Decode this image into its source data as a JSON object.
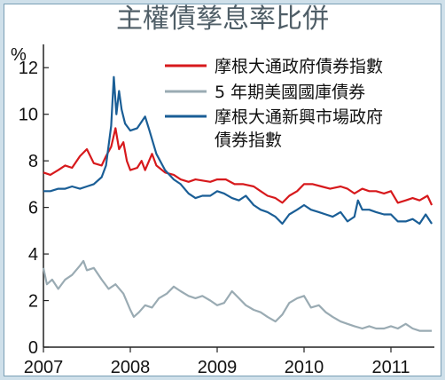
{
  "chart_data": {
    "type": "line",
    "title": "主權債孳息率比併",
    "ylabel": "%",
    "xlim": [
      2007.0,
      2011.5
    ],
    "ylim": [
      0,
      13
    ],
    "x_ticks": [
      2007,
      2008,
      2009,
      2010,
      2011
    ],
    "y_ticks": [
      0,
      2,
      4,
      6,
      8,
      10,
      12
    ],
    "grid": false,
    "legend_position": "top-right",
    "series": [
      {
        "name": "摩根大通政府債券指數",
        "color": "#d7191c",
        "points": [
          [
            2007.0,
            7.5
          ],
          [
            2007.08,
            7.4
          ],
          [
            2007.17,
            7.6
          ],
          [
            2007.25,
            7.8
          ],
          [
            2007.33,
            7.7
          ],
          [
            2007.42,
            8.2
          ],
          [
            2007.5,
            8.5
          ],
          [
            2007.58,
            7.9
          ],
          [
            2007.67,
            7.8
          ],
          [
            2007.72,
            8.2
          ],
          [
            2007.78,
            8.6
          ],
          [
            2007.83,
            9.4
          ],
          [
            2007.87,
            8.5
          ],
          [
            2007.92,
            8.8
          ],
          [
            2007.96,
            8.0
          ],
          [
            2008.0,
            7.6
          ],
          [
            2008.08,
            7.7
          ],
          [
            2008.13,
            8.0
          ],
          [
            2008.17,
            7.6
          ],
          [
            2008.25,
            8.3
          ],
          [
            2008.3,
            7.8
          ],
          [
            2008.4,
            7.5
          ],
          [
            2008.5,
            7.4
          ],
          [
            2008.58,
            7.2
          ],
          [
            2008.67,
            7.1
          ],
          [
            2008.75,
            7.2
          ],
          [
            2008.92,
            7.1
          ],
          [
            2009.0,
            7.2
          ],
          [
            2009.1,
            7.2
          ],
          [
            2009.2,
            7.0
          ],
          [
            2009.3,
            7.0
          ],
          [
            2009.42,
            6.9
          ],
          [
            2009.5,
            6.7
          ],
          [
            2009.58,
            6.5
          ],
          [
            2009.67,
            6.4
          ],
          [
            2009.75,
            6.2
          ],
          [
            2009.83,
            6.5
          ],
          [
            2009.92,
            6.7
          ],
          [
            2010.0,
            7.0
          ],
          [
            2010.1,
            7.0
          ],
          [
            2010.2,
            6.9
          ],
          [
            2010.3,
            6.8
          ],
          [
            2010.42,
            6.9
          ],
          [
            2010.5,
            6.8
          ],
          [
            2010.58,
            6.6
          ],
          [
            2010.67,
            6.8
          ],
          [
            2010.75,
            6.7
          ],
          [
            2010.83,
            6.7
          ],
          [
            2010.92,
            6.6
          ],
          [
            2011.0,
            6.7
          ],
          [
            2011.08,
            6.2
          ],
          [
            2011.17,
            6.3
          ],
          [
            2011.25,
            6.4
          ],
          [
            2011.33,
            6.3
          ],
          [
            2011.42,
            6.5
          ],
          [
            2011.47,
            6.1
          ]
        ]
      },
      {
        "name": "5 年期美國國庫債券",
        "color": "#9aabb3",
        "points": [
          [
            2007.0,
            3.4
          ],
          [
            2007.04,
            2.7
          ],
          [
            2007.1,
            2.9
          ],
          [
            2007.17,
            2.5
          ],
          [
            2007.25,
            2.9
          ],
          [
            2007.33,
            3.1
          ],
          [
            2007.42,
            3.5
          ],
          [
            2007.46,
            3.7
          ],
          [
            2007.5,
            3.3
          ],
          [
            2007.58,
            3.4
          ],
          [
            2007.67,
            2.9
          ],
          [
            2007.75,
            2.5
          ],
          [
            2007.83,
            2.7
          ],
          [
            2007.92,
            2.3
          ],
          [
            2008.0,
            1.6
          ],
          [
            2008.04,
            1.3
          ],
          [
            2008.1,
            1.5
          ],
          [
            2008.17,
            1.8
          ],
          [
            2008.25,
            1.7
          ],
          [
            2008.33,
            2.1
          ],
          [
            2008.42,
            2.3
          ],
          [
            2008.5,
            2.6
          ],
          [
            2008.58,
            2.4
          ],
          [
            2008.67,
            2.2
          ],
          [
            2008.75,
            2.1
          ],
          [
            2008.83,
            2.2
          ],
          [
            2008.92,
            2.0
          ],
          [
            2009.0,
            1.8
          ],
          [
            2009.08,
            1.9
          ],
          [
            2009.17,
            2.4
          ],
          [
            2009.25,
            2.1
          ],
          [
            2009.33,
            1.8
          ],
          [
            2009.42,
            1.6
          ],
          [
            2009.5,
            1.5
          ],
          [
            2009.58,
            1.3
          ],
          [
            2009.67,
            1.1
          ],
          [
            2009.75,
            1.4
          ],
          [
            2009.83,
            1.9
          ],
          [
            2009.92,
            2.1
          ],
          [
            2010.0,
            2.2
          ],
          [
            2010.08,
            1.7
          ],
          [
            2010.17,
            1.8
          ],
          [
            2010.25,
            1.5
          ],
          [
            2010.33,
            1.3
          ],
          [
            2010.42,
            1.1
          ],
          [
            2010.5,
            1.0
          ],
          [
            2010.58,
            0.9
          ],
          [
            2010.67,
            0.8
          ],
          [
            2010.75,
            0.9
          ],
          [
            2010.83,
            0.8
          ],
          [
            2010.92,
            0.8
          ],
          [
            2011.0,
            0.9
          ],
          [
            2011.08,
            0.8
          ],
          [
            2011.17,
            1.0
          ],
          [
            2011.25,
            0.8
          ],
          [
            2011.33,
            0.7
          ],
          [
            2011.42,
            0.7
          ],
          [
            2011.47,
            0.7
          ]
        ]
      },
      {
        "name": "摩根大通新興市場政府債券指數",
        "color": "#1a5e96",
        "points": [
          [
            2007.0,
            6.7
          ],
          [
            2007.08,
            6.7
          ],
          [
            2007.17,
            6.8
          ],
          [
            2007.25,
            6.8
          ],
          [
            2007.33,
            6.9
          ],
          [
            2007.42,
            6.8
          ],
          [
            2007.5,
            6.9
          ],
          [
            2007.58,
            7.0
          ],
          [
            2007.67,
            7.3
          ],
          [
            2007.72,
            7.8
          ],
          [
            2007.78,
            9.5
          ],
          [
            2007.81,
            11.6
          ],
          [
            2007.84,
            10.0
          ],
          [
            2007.87,
            11.0
          ],
          [
            2007.9,
            10.2
          ],
          [
            2007.94,
            9.6
          ],
          [
            2008.0,
            9.3
          ],
          [
            2008.08,
            9.4
          ],
          [
            2008.17,
            9.9
          ],
          [
            2008.22,
            9.3
          ],
          [
            2008.3,
            8.3
          ],
          [
            2008.4,
            7.6
          ],
          [
            2008.5,
            7.2
          ],
          [
            2008.58,
            7.0
          ],
          [
            2008.67,
            6.6
          ],
          [
            2008.75,
            6.4
          ],
          [
            2008.83,
            6.5
          ],
          [
            2008.92,
            6.5
          ],
          [
            2009.0,
            6.7
          ],
          [
            2009.08,
            6.6
          ],
          [
            2009.17,
            6.4
          ],
          [
            2009.25,
            6.3
          ],
          [
            2009.33,
            6.5
          ],
          [
            2009.42,
            6.1
          ],
          [
            2009.5,
            5.9
          ],
          [
            2009.58,
            5.8
          ],
          [
            2009.67,
            5.6
          ],
          [
            2009.75,
            5.3
          ],
          [
            2009.83,
            5.7
          ],
          [
            2009.92,
            5.9
          ],
          [
            2010.0,
            6.1
          ],
          [
            2010.08,
            5.9
          ],
          [
            2010.17,
            5.8
          ],
          [
            2010.25,
            5.7
          ],
          [
            2010.33,
            5.6
          ],
          [
            2010.42,
            5.8
          ],
          [
            2010.5,
            5.4
          ],
          [
            2010.58,
            5.6
          ],
          [
            2010.62,
            6.3
          ],
          [
            2010.67,
            5.9
          ],
          [
            2010.75,
            5.9
          ],
          [
            2010.83,
            5.8
          ],
          [
            2010.92,
            5.7
          ],
          [
            2011.0,
            5.7
          ],
          [
            2011.08,
            5.4
          ],
          [
            2011.17,
            5.4
          ],
          [
            2011.25,
            5.5
          ],
          [
            2011.33,
            5.3
          ],
          [
            2011.4,
            5.7
          ],
          [
            2011.47,
            5.3
          ]
        ]
      }
    ]
  }
}
